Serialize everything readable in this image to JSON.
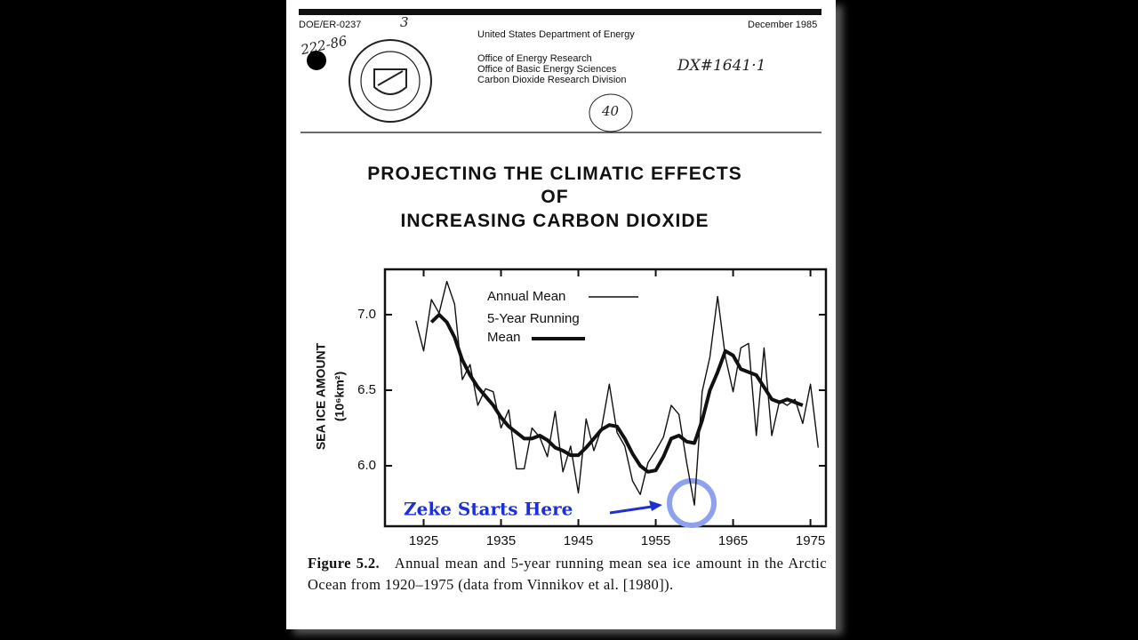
{
  "header": {
    "doc_id": "DOE/ER-0237",
    "date": "December 1985",
    "department": "United States Department of Energy",
    "offices": [
      "Office of Energy Research",
      "Office of Basic Energy Sciences",
      "Carbon Dioxide Research Division"
    ],
    "handwritten": [
      "222-86",
      "3",
      "DX#1641·1",
      "40"
    ]
  },
  "title": [
    "PROJECTING THE CLIMATIC EFFECTS",
    "OF",
    "INCREASING CARBON DIOXIDE"
  ],
  "chart_data": {
    "type": "line",
    "y_label": "SEA ICE AMOUNT",
    "y_unit": "(10⁶km²)",
    "x": [
      1924,
      1925,
      1926,
      1927,
      1928,
      1929,
      1930,
      1931,
      1932,
      1933,
      1934,
      1935,
      1936,
      1937,
      1938,
      1939,
      1940,
      1941,
      1942,
      1943,
      1944,
      1945,
      1946,
      1947,
      1948,
      1949,
      1950,
      1951,
      1952,
      1953,
      1954,
      1955,
      1956,
      1957,
      1958,
      1959,
      1960,
      1961,
      1962,
      1963,
      1964,
      1965,
      1966,
      1967,
      1968,
      1969,
      1970,
      1971,
      1972,
      1973,
      1974,
      1975,
      1976
    ],
    "series": [
      {
        "name": "Annual Mean",
        "color": "#111111",
        "values": [
          6.96,
          6.76,
          7.1,
          7.01,
          7.22,
          7.07,
          6.57,
          6.67,
          6.4,
          6.51,
          6.49,
          6.25,
          6.37,
          5.98,
          5.98,
          6.25,
          6.19,
          6.06,
          6.36,
          5.96,
          6.13,
          5.82,
          6.31,
          6.1,
          6.25,
          6.54,
          6.22,
          6.13,
          5.9,
          5.81,
          6.02,
          6.1,
          6.19,
          6.4,
          6.34,
          6.02,
          5.74,
          6.49,
          6.72,
          7.12,
          6.72,
          6.49,
          6.78,
          6.81,
          6.2,
          6.78,
          6.2,
          6.43,
          6.4,
          6.44,
          6.28,
          6.54,
          6.12
        ]
      },
      {
        "name": "5-Year Running Mean",
        "color": "#111111",
        "values": [
          null,
          null,
          6.95,
          7.0,
          6.95,
          6.85,
          6.7,
          6.6,
          6.52,
          6.46,
          6.4,
          6.32,
          6.26,
          6.22,
          6.18,
          6.18,
          6.2,
          6.17,
          6.12,
          6.1,
          6.07,
          6.07,
          6.12,
          6.18,
          6.24,
          6.27,
          6.26,
          6.18,
          6.08,
          6.0,
          5.96,
          5.97,
          6.06,
          6.18,
          6.2,
          6.16,
          6.15,
          6.3,
          6.5,
          6.62,
          6.76,
          6.73,
          6.64,
          6.62,
          6.6,
          6.52,
          6.44,
          6.42,
          6.44,
          6.42,
          6.4,
          null,
          null
        ]
      }
    ],
    "xlim": [
      1920,
      1977
    ],
    "xticks": [
      1925,
      1935,
      1945,
      1955,
      1965,
      1975
    ],
    "ylim": [
      5.6,
      7.3
    ],
    "yticks": [
      {
        "value": 6,
        "label": "6.0"
      },
      6.5,
      {
        "value": 7,
        "label": "7.0"
      }
    ],
    "annotation": "Zeke Starts Here"
  },
  "caption": {
    "label": "Figure 5.2.",
    "text": "Annual mean and 5-year running mean sea ice amount in the Arctic Ocean from 1920–1975 (data from Vinnikov et al. [1980])."
  }
}
